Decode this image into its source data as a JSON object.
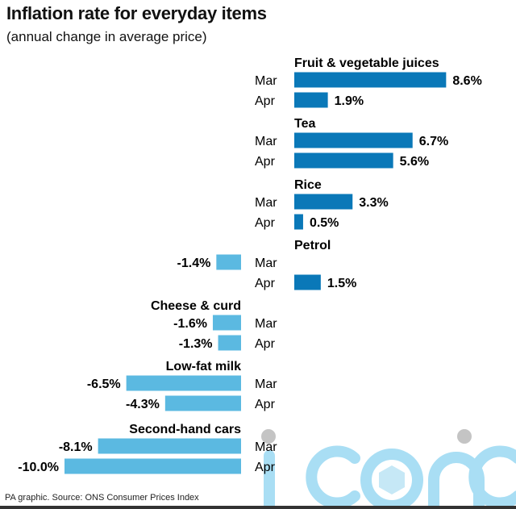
{
  "title": "Inflation rate for everyday items",
  "subtitle": "(annual change in average price)",
  "source": "PA graphic. Source: ONS Consumer Prices Index",
  "watermark": "iconic",
  "colors": {
    "positive": "#0a78b8",
    "negative": "#5bb9e1",
    "watermark": "#a9def4"
  },
  "chart_data": {
    "type": "bar",
    "orientation": "horizontal",
    "series_labels": [
      "Mar",
      "Apr"
    ],
    "categories": [
      "Fruit & vegetable juices",
      "Tea",
      "Rice",
      "Petrol",
      "Cheese & curd",
      "Low-fat milk",
      "Second-hand cars"
    ],
    "series": [
      {
        "name": "Mar",
        "values": [
          8.6,
          6.7,
          3.3,
          -1.4,
          -1.6,
          -6.5,
          -8.1
        ]
      },
      {
        "name": "Apr",
        "values": [
          1.9,
          5.6,
          0.5,
          1.5,
          -1.3,
          -4.3,
          -10.0
        ]
      }
    ],
    "value_labels": {
      "Mar": [
        "8.6%",
        "6.7%",
        "3.3%",
        "-1.4%",
        "-1.6%",
        "-6.5%",
        "-8.1%"
      ],
      "Apr": [
        "1.9%",
        "5.6%",
        "0.5%",
        "1.5%",
        "-1.3%",
        "-4.3%",
        "-10.0%"
      ]
    }
  }
}
